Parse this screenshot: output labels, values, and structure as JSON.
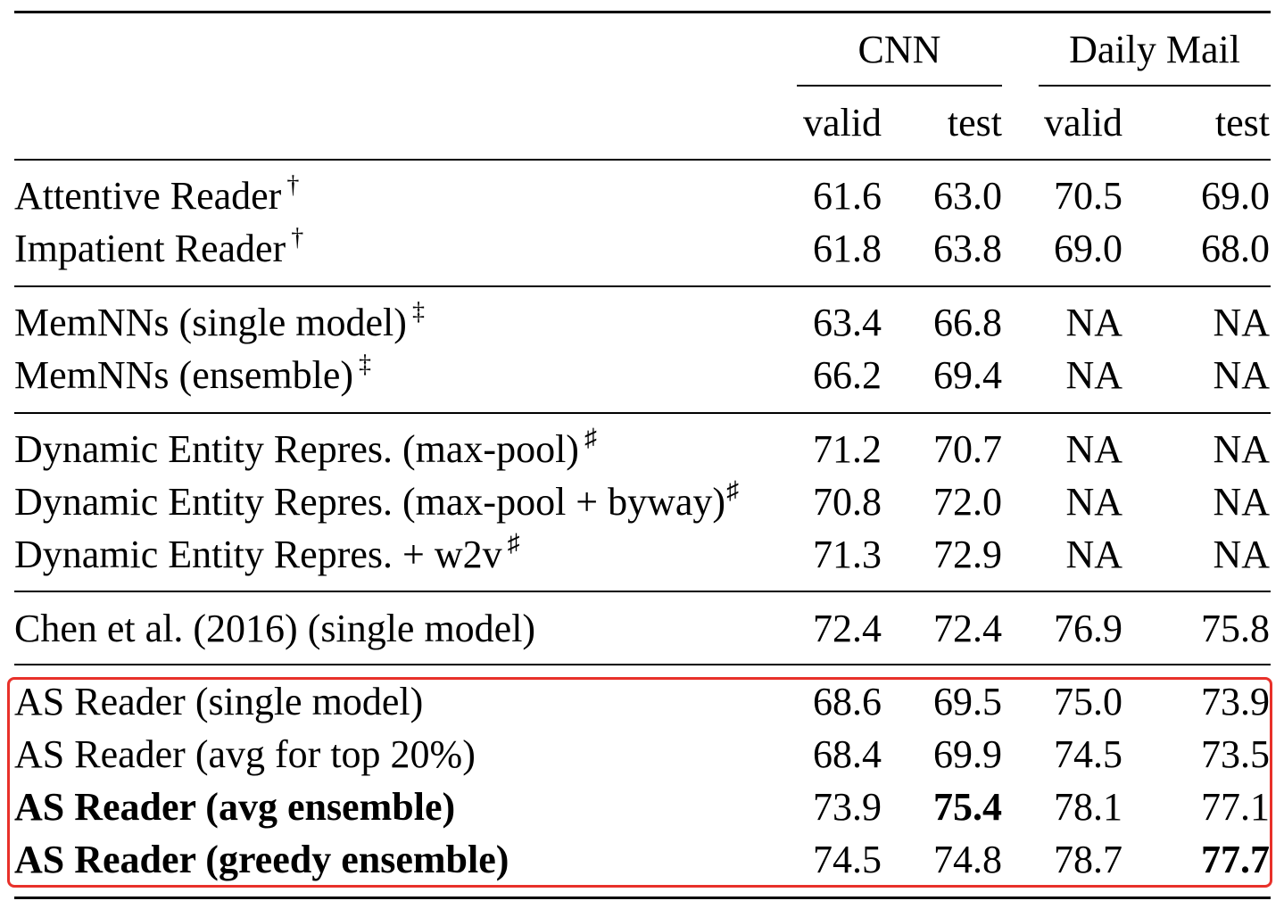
{
  "header": {
    "groups": [
      "CNN",
      "Daily Mail"
    ],
    "subcols": [
      "valid",
      "test",
      "valid",
      "test"
    ]
  },
  "rows": [
    {
      "name": "Attentive Reader",
      "mark": "†",
      "v": [
        "61.6",
        "63.0",
        "70.5",
        "69.0"
      ]
    },
    {
      "name": "Impatient Reader",
      "mark": "†",
      "v": [
        "61.8",
        "63.8",
        "69.0",
        "68.0"
      ]
    },
    {
      "name": "MemNNs (single model)",
      "mark": "‡",
      "v": [
        "63.4",
        "66.8",
        "NA",
        "NA"
      ]
    },
    {
      "name": "MemNNs (ensemble)",
      "mark": "‡",
      "v": [
        "66.2",
        "69.4",
        "NA",
        "NA"
      ]
    },
    {
      "name": "Dynamic Entity Repres. (max-pool)",
      "mark": "♯",
      "v": [
        "71.2",
        "70.7",
        "NA",
        "NA"
      ]
    },
    {
      "name": "Dynamic Entity Repres. (max-pool + byway)",
      "mark": "♯",
      "v": [
        "70.8",
        "72.0",
        "NA",
        "NA"
      ]
    },
    {
      "name": "Dynamic Entity Repres. + w2v",
      "mark": "♯",
      "v": [
        "71.3",
        "72.9",
        "NA",
        "NA"
      ]
    },
    {
      "name": "Chen et al. (2016) (single model)",
      "mark": "",
      "v": [
        "72.4",
        "72.4",
        "76.9",
        "75.8"
      ]
    },
    {
      "name": "AS Reader (single model)",
      "mark": "",
      "v": [
        "68.6",
        "69.5",
        "75.0",
        "73.9"
      ]
    },
    {
      "name": "AS Reader (avg for top 20%)",
      "mark": "",
      "v": [
        "68.4",
        "69.9",
        "74.5",
        "73.5"
      ]
    },
    {
      "name": "AS Reader (avg ensemble)",
      "mark": "",
      "v": [
        "73.9",
        "75.4",
        "78.1",
        "77.1"
      ]
    },
    {
      "name": "AS Reader (greedy ensemble)",
      "mark": "",
      "v": [
        "74.5",
        "74.8",
        "78.7",
        "77.7"
      ]
    }
  ],
  "highlight_color": "#e8312a"
}
